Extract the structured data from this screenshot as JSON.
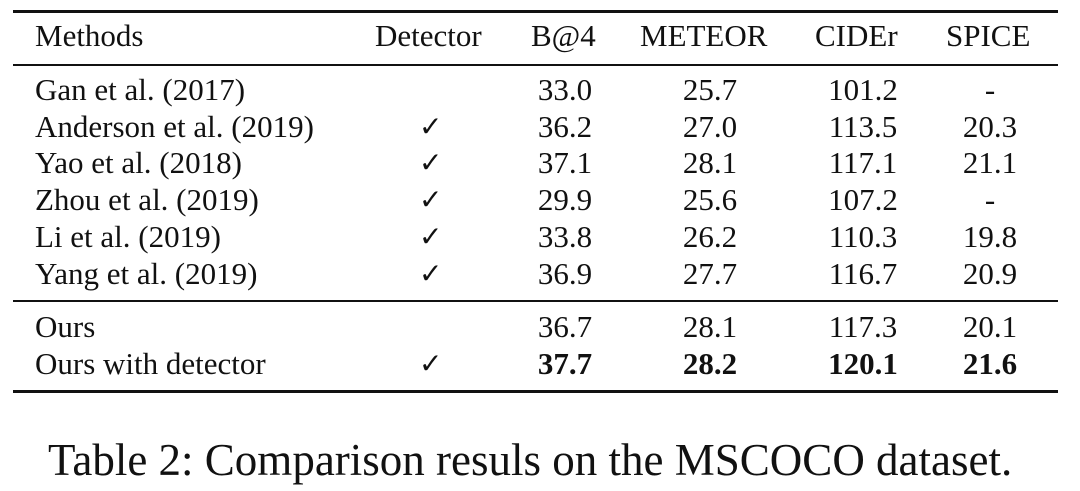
{
  "table": {
    "headers": [
      "Methods",
      "Detector",
      "B@4",
      "METEOR",
      "CIDEr",
      "SPICE"
    ],
    "group1": [
      {
        "method": "Gan et al. (2017)",
        "detector": "",
        "b4": "33.0",
        "meteor": "25.7",
        "cider": "101.2",
        "spice": "-"
      },
      {
        "method": "Anderson et al. (2019)",
        "detector": "✓",
        "b4": "36.2",
        "meteor": "27.0",
        "cider": "113.5",
        "spice": "20.3"
      },
      {
        "method": "Yao et al. (2018)",
        "detector": "✓",
        "b4": "37.1",
        "meteor": "28.1",
        "cider": "117.1",
        "spice": "21.1"
      },
      {
        "method": "Zhou et al. (2019)",
        "detector": "✓",
        "b4": "29.9",
        "meteor": "25.6",
        "cider": "107.2",
        "spice": "-"
      },
      {
        "method": "Li et al. (2019)",
        "detector": "✓",
        "b4": "33.8",
        "meteor": "26.2",
        "cider": "110.3",
        "spice": "19.8"
      },
      {
        "method": "Yang et al. (2019)",
        "detector": "✓",
        "b4": "36.9",
        "meteor": "27.7",
        "cider": "116.7",
        "spice": "20.9"
      }
    ],
    "group2": [
      {
        "method": "Ours",
        "detector": "",
        "b4": "36.7",
        "meteor": "28.1",
        "cider": "117.3",
        "spice": "20.1"
      },
      {
        "method": "Ours with detector",
        "detector": "✓",
        "b4": "37.7",
        "meteor": "28.2",
        "cider": "120.1",
        "spice": "21.6"
      }
    ]
  },
  "caption": "Table 2: Comparison resuls on the MSCOCO dataset."
}
